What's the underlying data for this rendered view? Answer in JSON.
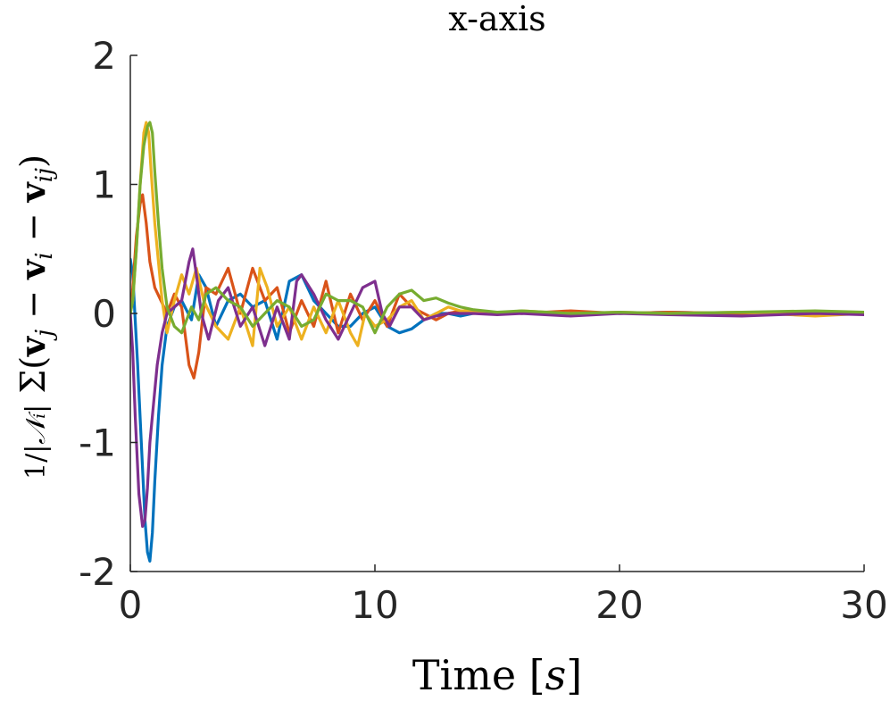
{
  "chart_data": {
    "type": "line",
    "title": "x-axis",
    "xlabel": "Time [s]",
    "ylabel": "1/|N_i| Σ(v_j − v_i − v_ij)",
    "xlim": [
      0,
      30
    ],
    "ylim": [
      -2,
      2
    ],
    "xticks": [
      0,
      10,
      20,
      30
    ],
    "xtick_labels": [
      "0",
      "10",
      "20",
      "30"
    ],
    "yticks": [
      2,
      1,
      0,
      -1,
      -2
    ],
    "ytick_labels": [
      "2",
      "1",
      "0",
      "-1",
      "-2"
    ],
    "grid": false,
    "series": [
      {
        "color": "#0072BD",
        "x": [
          0,
          0.1,
          0.3,
          0.45,
          0.6,
          0.7,
          0.8,
          0.9,
          1.0,
          1.15,
          1.3,
          1.5,
          1.8,
          2.1,
          2.5,
          2.8,
          3.1,
          3.5,
          4.0,
          4.5,
          5.0,
          5.5,
          6.0,
          6.5,
          7.0,
          7.5,
          8.0,
          8.5,
          9.0,
          9.5,
          10.0,
          10.5,
          11.0,
          11.5,
          12.0,
          12.5,
          13.0,
          13.5,
          14.0,
          15.0,
          16.0,
          18.0,
          20.0,
          22.0,
          25.0,
          28.0,
          30.0
        ],
        "y": [
          0.42,
          0.3,
          -0.4,
          -1.0,
          -1.6,
          -1.85,
          -1.92,
          -1.7,
          -1.3,
          -0.8,
          -0.4,
          -0.1,
          0.05,
          0.1,
          -0.05,
          0.3,
          0.2,
          -0.1,
          0.1,
          0.15,
          0.05,
          0.1,
          -0.2,
          0.25,
          0.3,
          0.1,
          0.0,
          -0.1,
          -0.1,
          0.0,
          0.05,
          -0.1,
          -0.15,
          -0.12,
          -0.05,
          0.0,
          0.0,
          -0.02,
          0.0,
          0.01,
          0.0,
          0.01,
          0.0,
          0.01,
          0.0,
          0.01,
          0.0
        ]
      },
      {
        "color": "#D95319",
        "x": [
          0,
          0.1,
          0.25,
          0.4,
          0.5,
          0.65,
          0.8,
          1.0,
          1.2,
          1.5,
          1.8,
          2.1,
          2.4,
          2.6,
          2.8,
          3.1,
          3.5,
          4.0,
          4.5,
          5.0,
          5.5,
          6.0,
          6.5,
          7.0,
          7.5,
          8.0,
          8.5,
          9.0,
          9.5,
          10.0,
          10.5,
          11.0,
          11.5,
          12.0,
          12.5,
          13.0,
          13.5,
          14.0,
          15.0,
          16.0,
          18.0,
          20.0,
          22.0,
          25.0,
          28.0,
          30.0
        ],
        "y": [
          0.0,
          0.2,
          0.6,
          0.85,
          0.92,
          0.7,
          0.4,
          0.2,
          0.12,
          0.0,
          0.15,
          0.05,
          -0.4,
          -0.5,
          -0.3,
          0.2,
          0.15,
          0.35,
          0.0,
          0.35,
          0.1,
          0.2,
          -0.15,
          0.1,
          -0.1,
          0.25,
          -0.15,
          0.15,
          -0.05,
          0.1,
          -0.1,
          0.15,
          0.05,
          0.0,
          -0.05,
          0.0,
          0.02,
          0.0,
          0.01,
          0.0,
          0.02,
          0.0,
          0.01,
          0.0,
          0.01,
          0.0
        ]
      },
      {
        "color": "#EDB120",
        "x": [
          0,
          0.1,
          0.25,
          0.4,
          0.55,
          0.65,
          0.75,
          0.85,
          1.0,
          1.15,
          1.3,
          1.5,
          1.8,
          2.1,
          2.4,
          2.7,
          3.0,
          3.5,
          4.0,
          4.5,
          5.0,
          5.3,
          5.6,
          6.0,
          6.5,
          7.0,
          7.5,
          8.0,
          8.5,
          9.0,
          9.3,
          9.6,
          10.0,
          10.5,
          11.0,
          11.5,
          12.0,
          12.5,
          13.0,
          13.5,
          14.0,
          15.0,
          16.0,
          18.0,
          20.0,
          22.0,
          25.0,
          28.0,
          30.0
        ],
        "y": [
          0.0,
          0.1,
          0.5,
          1.0,
          1.4,
          1.48,
          1.4,
          1.1,
          0.7,
          0.4,
          0.1,
          -0.15,
          0.1,
          0.3,
          0.15,
          0.35,
          0.1,
          -0.1,
          -0.2,
          0.05,
          -0.25,
          0.35,
          0.2,
          -0.1,
          0.05,
          -0.2,
          0.05,
          -0.15,
          0.1,
          -0.15,
          -0.25,
          0.0,
          -0.1,
          -0.05,
          0.05,
          0.1,
          -0.05,
          0.0,
          0.05,
          0.02,
          0.02,
          0.0,
          0.02,
          0.0,
          0.01,
          0.0,
          0.01,
          -0.02,
          0.0
        ]
      },
      {
        "color": "#7E2F8E",
        "x": [
          0,
          0.1,
          0.2,
          0.35,
          0.5,
          0.6,
          0.7,
          0.8,
          0.95,
          1.1,
          1.3,
          1.5,
          1.8,
          2.1,
          2.4,
          2.55,
          2.7,
          2.9,
          3.2,
          3.6,
          4.0,
          4.5,
          5.0,
          5.5,
          6.0,
          6.5,
          6.8,
          7.0,
          7.5,
          8.0,
          8.5,
          9.0,
          9.5,
          10.0,
          10.3,
          10.6,
          11.0,
          11.5,
          12.0,
          12.5,
          13.0,
          14.0,
          15.0,
          16.0,
          18.0,
          20.0,
          22.0,
          25.0,
          28.0,
          30.0
        ],
        "y": [
          0.0,
          -0.3,
          -0.8,
          -1.4,
          -1.65,
          -1.6,
          -1.35,
          -1.0,
          -0.7,
          -0.4,
          -0.15,
          0.0,
          0.05,
          0.1,
          0.4,
          0.5,
          0.3,
          0.0,
          -0.2,
          0.1,
          0.2,
          -0.1,
          0.05,
          -0.25,
          0.05,
          -0.2,
          0.25,
          0.3,
          0.15,
          -0.05,
          -0.2,
          0.0,
          0.2,
          0.25,
          0.0,
          -0.1,
          0.05,
          0.05,
          -0.05,
          -0.02,
          0.0,
          0.0,
          -0.01,
          0.0,
          -0.02,
          0.0,
          -0.01,
          -0.02,
          0.0,
          -0.01
        ]
      },
      {
        "color": "#77AC30",
        "x": [
          0,
          0.1,
          0.25,
          0.4,
          0.55,
          0.7,
          0.8,
          0.9,
          1.0,
          1.15,
          1.3,
          1.5,
          1.8,
          2.1,
          2.5,
          2.8,
          3.1,
          3.5,
          4.0,
          4.5,
          5.0,
          5.5,
          6.0,
          6.5,
          7.0,
          7.5,
          8.0,
          8.5,
          9.0,
          9.5,
          10.0,
          10.5,
          11.0,
          11.5,
          12.0,
          12.5,
          13.0,
          13.5,
          14.0,
          15.0,
          16.0,
          18.0,
          20.0,
          22.0,
          25.0,
          28.0,
          30.0
        ],
        "y": [
          0.0,
          0.1,
          0.5,
          1.0,
          1.3,
          1.45,
          1.48,
          1.4,
          1.1,
          0.7,
          0.35,
          0.05,
          -0.1,
          -0.15,
          0.05,
          -0.05,
          0.15,
          0.2,
          0.1,
          0.05,
          -0.1,
          0.0,
          0.1,
          0.05,
          -0.1,
          -0.05,
          0.15,
          0.1,
          0.1,
          0.05,
          -0.15,
          0.05,
          0.15,
          0.18,
          0.1,
          0.12,
          0.08,
          0.05,
          0.03,
          0.01,
          0.02,
          0.0,
          0.01,
          0.0,
          0.01,
          0.02,
          0.01
        ]
      }
    ]
  }
}
